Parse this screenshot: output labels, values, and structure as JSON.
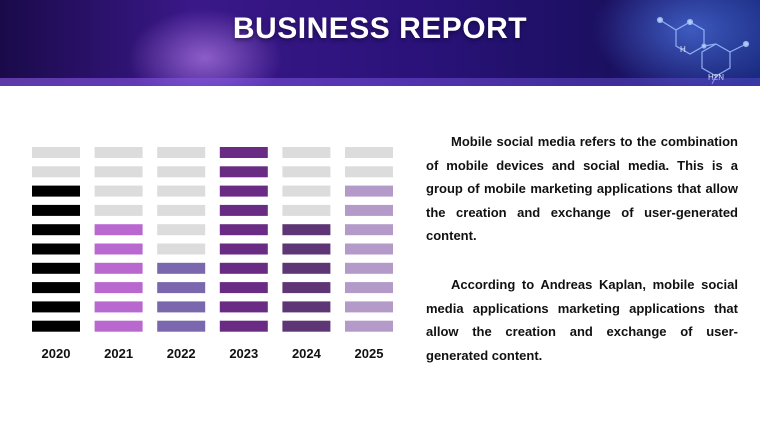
{
  "header": {
    "title": "BUSINESS REPORT",
    "molecule_label": "H2N"
  },
  "chart_data": {
    "type": "bar",
    "categories": [
      "2020",
      "2021",
      "2022",
      "2023",
      "2024",
      "2025"
    ],
    "values": [
      8,
      6,
      4,
      10,
      6,
      8
    ],
    "max_segments": 10,
    "colors": [
      "#000000",
      "#b968d0",
      "#7b67ae",
      "#6a2b84",
      "#5e3575",
      "#b39ac8"
    ],
    "empty_color": "#dcdcdc"
  },
  "paragraphs": [
    "Mobile social media refers to the combination of mobile devices and social media. This is a group of mobile marketing applications that allow the creation and exchange of user-generated content.",
    "According to Andreas Kaplan, mobile social media applications marketing applications that allow the creation and exchange of user-generated content."
  ]
}
